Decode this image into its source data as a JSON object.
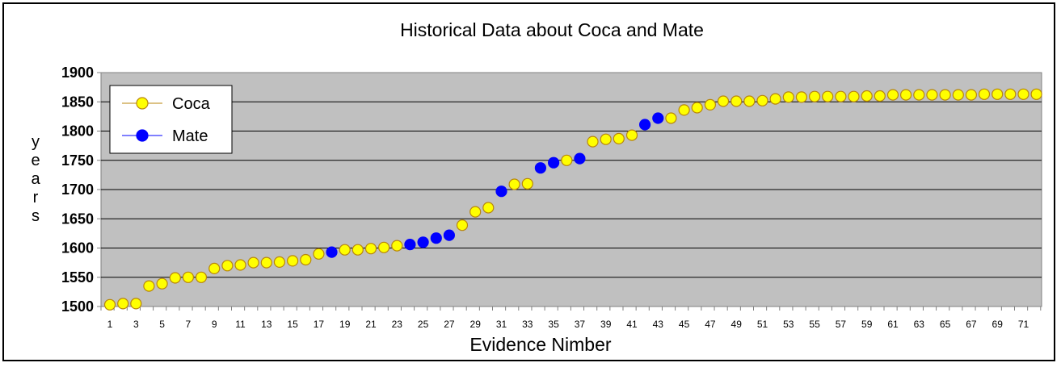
{
  "chart_data": {
    "type": "scatter",
    "title": "Historical Data about Coca and Mate",
    "xlabel": "Evidence Nimber",
    "ylabel": "years",
    "ylim": [
      1500,
      1900
    ],
    "yticks": [
      1500,
      1550,
      1600,
      1650,
      1700,
      1750,
      1800,
      1850,
      1900
    ],
    "xlim": [
      1,
      72
    ],
    "xticks": [
      1,
      3,
      5,
      7,
      9,
      11,
      13,
      15,
      17,
      19,
      21,
      23,
      25,
      27,
      29,
      31,
      33,
      35,
      37,
      39,
      41,
      43,
      45,
      47,
      49,
      51,
      53,
      55,
      57,
      59,
      61,
      63,
      65,
      67,
      69,
      71
    ],
    "grid": true,
    "legend_position": "top-left",
    "series": [
      {
        "name": "Coca",
        "color": "#ffff00",
        "stroke": "#b8860b",
        "points": [
          [
            1,
            1503
          ],
          [
            2,
            1505
          ],
          [
            3,
            1505
          ],
          [
            4,
            1535
          ],
          [
            5,
            1539
          ],
          [
            6,
            1549
          ],
          [
            7,
            1550
          ],
          [
            8,
            1550
          ],
          [
            9,
            1565
          ],
          [
            10,
            1570
          ],
          [
            11,
            1571
          ],
          [
            12,
            1575
          ],
          [
            13,
            1575
          ],
          [
            14,
            1576
          ],
          [
            15,
            1578
          ],
          [
            16,
            1580
          ],
          [
            17,
            1590
          ],
          [
            19,
            1597
          ],
          [
            20,
            1597
          ],
          [
            21,
            1599
          ],
          [
            22,
            1601
          ],
          [
            23,
            1604
          ],
          [
            28,
            1639
          ],
          [
            29,
            1662
          ],
          [
            30,
            1669
          ],
          [
            32,
            1709
          ],
          [
            33,
            1710
          ],
          [
            36,
            1750
          ],
          [
            38,
            1782
          ],
          [
            39,
            1786
          ],
          [
            40,
            1787
          ],
          [
            41,
            1793
          ],
          [
            44,
            1822
          ],
          [
            45,
            1836
          ],
          [
            46,
            1840
          ],
          [
            47,
            1845
          ],
          [
            48,
            1851
          ],
          [
            49,
            1851
          ],
          [
            50,
            1851
          ],
          [
            51,
            1852
          ],
          [
            52,
            1855
          ],
          [
            53,
            1858
          ],
          [
            54,
            1858
          ],
          [
            55,
            1859
          ],
          [
            56,
            1859
          ],
          [
            57,
            1859
          ],
          [
            58,
            1859
          ],
          [
            59,
            1860
          ],
          [
            60,
            1860
          ],
          [
            61,
            1862
          ],
          [
            62,
            1862
          ],
          [
            63,
            1862
          ],
          [
            64,
            1862
          ],
          [
            65,
            1862
          ],
          [
            66,
            1862
          ],
          [
            67,
            1862
          ],
          [
            68,
            1863
          ],
          [
            69,
            1863
          ],
          [
            70,
            1863
          ],
          [
            71,
            1863
          ],
          [
            72,
            1863
          ]
        ]
      },
      {
        "name": "Mate",
        "color": "#0000ff",
        "stroke": "#0000ff",
        "points": [
          [
            18,
            1593
          ],
          [
            24,
            1606
          ],
          [
            25,
            1610
          ],
          [
            26,
            1617
          ],
          [
            27,
            1622
          ],
          [
            31,
            1697
          ],
          [
            34,
            1737
          ],
          [
            35,
            1746
          ],
          [
            37,
            1753
          ],
          [
            42,
            1811
          ],
          [
            43,
            1822
          ]
        ]
      }
    ]
  }
}
